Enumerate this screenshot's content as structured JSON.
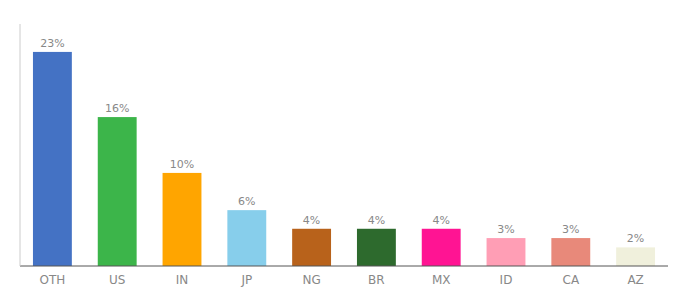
{
  "chart_data": {
    "type": "bar",
    "categories": [
      "OTH",
      "US",
      "IN",
      "JP",
      "NG",
      "BR",
      "MX",
      "ID",
      "CA",
      "AZ"
    ],
    "values": [
      23,
      16,
      10,
      6,
      4,
      4,
      4,
      3,
      3,
      2
    ],
    "value_labels": [
      "23%",
      "16%",
      "10%",
      "6%",
      "4%",
      "4%",
      "4%",
      "3%",
      "3%",
      "2%"
    ],
    "colors": [
      "#4472c4",
      "#3cb54a",
      "#ffa500",
      "#87ceeb",
      "#b8621b",
      "#2d6a2d",
      "#ff1493",
      "#ff9eb5",
      "#e8897a",
      "#f0f0dc"
    ],
    "ylim": [
      0,
      26
    ],
    "data_labels": true,
    "tick_labels": "x",
    "grid": false
  }
}
